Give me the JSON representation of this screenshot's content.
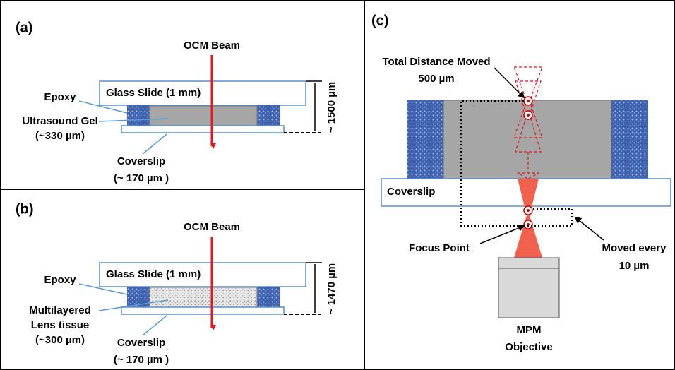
{
  "panels": [
    {
      "label": "(a)",
      "beam": "OCM Beam",
      "slide": "Glass Slide (1 mm)",
      "epoxy": "Epoxy",
      "sample": [
        "Ultrasound Gel",
        "(~330 µm)"
      ],
      "coverslip": [
        "Coverslip",
        "(~ 170 µm )"
      ],
      "thickness": "~ 1500 µm"
    },
    {
      "label": "(b)",
      "beam": "OCM Beam",
      "slide": "Glass Slide (1 mm)",
      "epoxy": "Epoxy",
      "sample": [
        "Multilayered",
        "Lens tissue",
        "(~300 µm)"
      ],
      "coverslip": [
        "Coverslip",
        "(~ 170 µm )"
      ],
      "thickness": "~ 1470 µm"
    }
  ],
  "panel_c": {
    "label": "(c)",
    "distance": [
      "Total Distance Moved",
      "500 µm"
    ],
    "coverslip": "Coverslip",
    "focus": "Focus Point",
    "step": [
      "Moved every",
      "10 µm"
    ],
    "objective": [
      "MPM",
      "Objective"
    ]
  }
}
